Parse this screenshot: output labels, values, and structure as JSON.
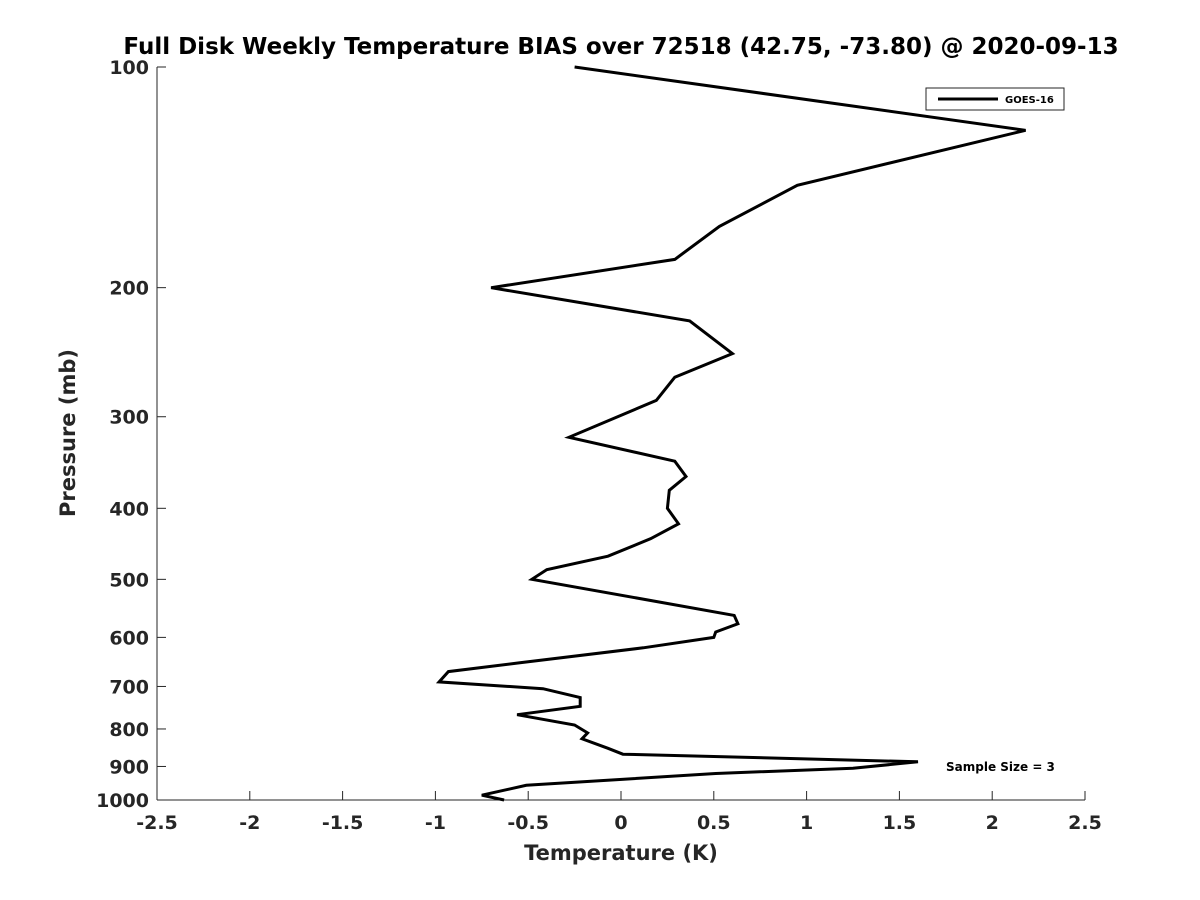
{
  "chart_data": {
    "type": "line",
    "title": "Full Disk Weekly Temperature BIAS over 72518 (42.75, -73.80) @ 2020-09-13",
    "xlabel": "Temperature (K)",
    "ylabel": "Pressure (mb)",
    "xlim": [
      -2.5,
      2.5
    ],
    "ylim": [
      1000,
      100
    ],
    "yscale": "log",
    "y_reversed": true,
    "grid": false,
    "x_ticks": [
      -2.5,
      -2,
      -1.5,
      -1,
      -0.5,
      0,
      0.5,
      1,
      1.5,
      2,
      2.5
    ],
    "x_tick_labels": [
      "-2.5",
      "-2",
      "-1.5",
      "-1",
      "-0.5",
      "0",
      "0.5",
      "1",
      "1.5",
      "2",
      "2.5"
    ],
    "y_ticks": [
      100,
      200,
      300,
      400,
      500,
      600,
      700,
      800,
      900,
      1000
    ],
    "y_tick_labels": [
      "100",
      "200",
      "300",
      "400",
      "500",
      "600",
      "700",
      "800",
      "900",
      "1000"
    ],
    "legend": {
      "position": "top-right",
      "entries": [
        "GOES-16"
      ]
    },
    "annotation": "Sample Size = 3",
    "series": [
      {
        "name": "GOES-16",
        "color": "#000000",
        "points": [
          {
            "x": -0.25,
            "p": 100
          },
          {
            "x": 2.18,
            "p": 122
          },
          {
            "x": 0.95,
            "p": 145
          },
          {
            "x": 0.53,
            "p": 165
          },
          {
            "x": 0.29,
            "p": 183
          },
          {
            "x": -0.7,
            "p": 200
          },
          {
            "x": 0.37,
            "p": 222
          },
          {
            "x": 0.6,
            "p": 246
          },
          {
            "x": 0.29,
            "p": 265
          },
          {
            "x": 0.19,
            "p": 285
          },
          {
            "x": -0.28,
            "p": 320
          },
          {
            "x": 0.29,
            "p": 345
          },
          {
            "x": 0.35,
            "p": 362
          },
          {
            "x": 0.26,
            "p": 378
          },
          {
            "x": 0.25,
            "p": 400
          },
          {
            "x": 0.31,
            "p": 420
          },
          {
            "x": 0.16,
            "p": 440
          },
          {
            "x": -0.07,
            "p": 465
          },
          {
            "x": -0.4,
            "p": 485
          },
          {
            "x": -0.48,
            "p": 500
          },
          {
            "x": 0.61,
            "p": 560
          },
          {
            "x": 0.63,
            "p": 575
          },
          {
            "x": 0.51,
            "p": 590
          },
          {
            "x": 0.5,
            "p": 600
          },
          {
            "x": 0.12,
            "p": 620
          },
          {
            "x": -0.55,
            "p": 650
          },
          {
            "x": -0.93,
            "p": 668
          },
          {
            "x": -0.98,
            "p": 690
          },
          {
            "x": -0.42,
            "p": 705
          },
          {
            "x": -0.22,
            "p": 725
          },
          {
            "x": -0.22,
            "p": 745
          },
          {
            "x": -0.56,
            "p": 765
          },
          {
            "x": -0.25,
            "p": 790
          },
          {
            "x": -0.18,
            "p": 810
          },
          {
            "x": -0.21,
            "p": 825
          },
          {
            "x": -0.07,
            "p": 850
          },
          {
            "x": 0.01,
            "p": 866
          },
          {
            "x": 1.6,
            "p": 887
          },
          {
            "x": 1.25,
            "p": 905
          },
          {
            "x": 0.51,
            "p": 920
          },
          {
            "x": -0.51,
            "p": 955
          },
          {
            "x": -0.75,
            "p": 985
          },
          {
            "x": -0.63,
            "p": 1000
          }
        ]
      }
    ]
  }
}
